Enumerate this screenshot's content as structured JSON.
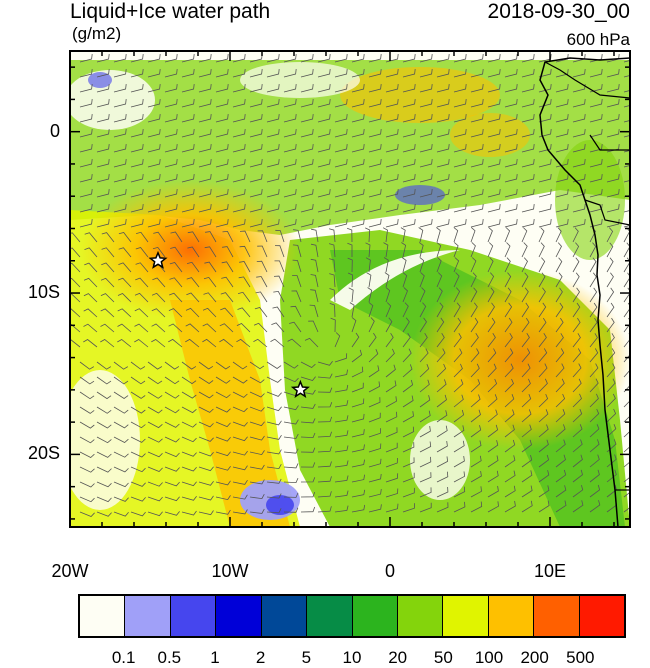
{
  "header": {
    "title": "Liquid+Ice water path",
    "units": "(g/m2)",
    "datetime": "2018-09-30_00",
    "level": "600 hPa"
  },
  "axes": {
    "x_ticks": [
      {
        "lon": -20,
        "label": "20W"
      },
      {
        "lon": -10,
        "label": "10W"
      },
      {
        "lon": 0,
        "label": "0"
      },
      {
        "lon": 10,
        "label": "10E"
      }
    ],
    "y_ticks": [
      {
        "lat": 0,
        "label": "0"
      },
      {
        "lat": -10,
        "label": "10S"
      },
      {
        "lat": -20,
        "label": "20S"
      }
    ],
    "lon_range": [
      -20,
      15
    ],
    "lat_range": [
      -24.5,
      5
    ]
  },
  "markers": [
    {
      "name": "star-marker",
      "lon": -14.5,
      "lat": -8
    },
    {
      "name": "star-marker",
      "lon": -5.6,
      "lat": -16
    }
  ],
  "colorbar": {
    "colors": [
      "#fefef4",
      "#a0a0f8",
      "#4646ee",
      "#0000d8",
      "#004898",
      "#068c46",
      "#2cb41e",
      "#84d40c",
      "#e0f400",
      "#fec000",
      "#ff6000",
      "#ff1a00"
    ],
    "labels": [
      "0.1",
      "0.5",
      "1",
      "2",
      "5",
      "10",
      "20",
      "50",
      "100",
      "200",
      "500"
    ]
  }
}
